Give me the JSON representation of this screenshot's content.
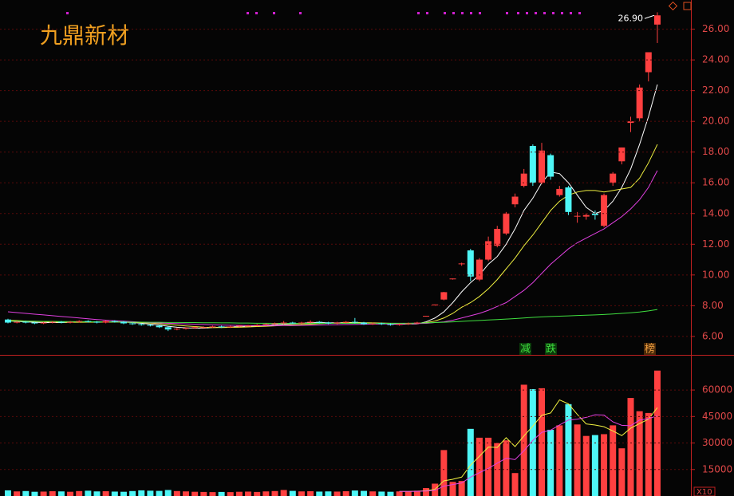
{
  "chart_data": [
    {
      "type": "candlestick",
      "title": "九鼎新材",
      "open": [
        7.1,
        6.9,
        6.95,
        6.9,
        6.85,
        6.9,
        6.95,
        6.9,
        6.95,
        7.0,
        6.95,
        6.9,
        7.0,
        6.95,
        6.85,
        6.8,
        6.75,
        6.7,
        6.6,
        6.45,
        6.5,
        6.55,
        6.6,
        6.6,
        6.65,
        6.6,
        6.65,
        6.7,
        6.7,
        6.75,
        6.8,
        6.85,
        6.9,
        6.85,
        6.9,
        6.95,
        6.9,
        6.85,
        6.9,
        6.95,
        6.9,
        6.8,
        6.85,
        6.8,
        6.75,
        6.8,
        6.85,
        7.3,
        8.07,
        8.4,
        9.75,
        10.7,
        11.6,
        9.7,
        11.0,
        11.9,
        12.7,
        14.6,
        15.8,
        18.4,
        16.0,
        17.8,
        15.2,
        15.7,
        13.8,
        13.8,
        14.0,
        13.2,
        16.0,
        17.4,
        19.9,
        20.2,
        23.2,
        26.3
      ],
      "high": [
        7.15,
        7.0,
        7.0,
        6.95,
        6.95,
        7.0,
        7.0,
        7.0,
        7.05,
        7.05,
        7.0,
        7.05,
        7.05,
        7.0,
        6.9,
        6.85,
        6.8,
        6.75,
        6.65,
        6.55,
        6.6,
        6.65,
        6.65,
        6.7,
        6.7,
        6.7,
        6.75,
        6.75,
        6.8,
        6.85,
        6.9,
        7.0,
        6.95,
        6.95,
        7.05,
        7.0,
        6.95,
        6.95,
        7.0,
        7.2,
        6.95,
        6.9,
        6.9,
        6.85,
        6.85,
        6.9,
        6.95,
        7.34,
        8.08,
        8.9,
        9.77,
        10.8,
        11.7,
        11.1,
        12.5,
        13.2,
        14.1,
        15.3,
        16.9,
        18.5,
        18.6,
        17.9,
        15.8,
        15.8,
        14.1,
        14.0,
        14.2,
        15.3,
        16.7,
        18.3,
        20.3,
        22.4,
        24.5,
        27.1
      ],
      "low": [
        6.85,
        6.85,
        6.85,
        6.8,
        6.8,
        6.85,
        6.85,
        6.85,
        6.9,
        6.9,
        6.85,
        6.85,
        6.9,
        6.8,
        6.75,
        6.7,
        6.65,
        6.55,
        6.35,
        6.4,
        6.45,
        6.5,
        6.55,
        6.55,
        6.55,
        6.55,
        6.6,
        6.65,
        6.65,
        6.7,
        6.75,
        6.8,
        6.8,
        6.8,
        6.85,
        6.85,
        6.8,
        6.8,
        6.85,
        6.85,
        6.75,
        6.75,
        6.75,
        6.7,
        6.7,
        6.75,
        6.8,
        7.3,
        8.07,
        8.35,
        9.7,
        10.6,
        9.6,
        9.6,
        10.9,
        11.8,
        12.6,
        14.4,
        15.7,
        15.8,
        15.9,
        16.2,
        15.1,
        13.9,
        13.4,
        13.6,
        13.6,
        13.1,
        15.8,
        17.2,
        19.3,
        20.0,
        22.6,
        25.1
      ],
      "close": [
        6.9,
        6.95,
        6.9,
        6.85,
        6.9,
        6.95,
        6.9,
        6.95,
        7.0,
        6.95,
        6.9,
        7.0,
        6.95,
        6.85,
        6.8,
        6.75,
        6.7,
        6.6,
        6.45,
        6.5,
        6.55,
        6.6,
        6.6,
        6.65,
        6.6,
        6.65,
        6.7,
        6.7,
        6.75,
        6.8,
        6.85,
        6.9,
        6.85,
        6.9,
        6.95,
        6.9,
        6.85,
        6.9,
        6.95,
        6.9,
        6.8,
        6.85,
        6.8,
        6.75,
        6.8,
        6.85,
        6.9,
        7.34,
        8.08,
        8.88,
        9.77,
        10.75,
        9.9,
        11.0,
        12.2,
        13.0,
        14.0,
        15.1,
        16.6,
        16.0,
        18.1,
        16.4,
        15.6,
        14.1,
        13.85,
        13.9,
        13.9,
        15.2,
        16.6,
        18.3,
        20.0,
        22.2,
        24.5,
        26.9
      ],
      "up_color": "#ff4040",
      "down_color": "#4ef6f6",
      "lines": [
        {
          "color": "#ffffff",
          "values": [
            7.0,
            6.98,
            6.95,
            6.92,
            6.9,
            6.9,
            6.9,
            6.92,
            6.94,
            6.95,
            6.94,
            6.94,
            6.95,
            6.93,
            6.9,
            6.86,
            6.8,
            6.74,
            6.66,
            6.6,
            6.56,
            6.54,
            6.54,
            6.58,
            6.6,
            6.62,
            6.64,
            6.66,
            6.68,
            6.72,
            6.76,
            6.8,
            6.83,
            6.86,
            6.89,
            6.9,
            6.89,
            6.88,
            6.9,
            6.9,
            6.88,
            6.86,
            6.84,
            6.8,
            6.8,
            6.81,
            6.82,
            6.95,
            7.2,
            7.6,
            8.2,
            8.9,
            9.5,
            10.0,
            10.7,
            11.2,
            12.0,
            13.0,
            14.2,
            15.0,
            16.0,
            16.7,
            16.6,
            16.0,
            15.2,
            14.4,
            14.0,
            14.2,
            14.8,
            15.7,
            16.9,
            18.5,
            20.3,
            22.4
          ]
        },
        {
          "color": "#f0f040",
          "values": [
            7.05,
            7.03,
            7.0,
            6.98,
            6.96,
            6.94,
            6.92,
            6.92,
            6.92,
            6.93,
            6.93,
            6.93,
            6.94,
            6.94,
            6.92,
            6.9,
            6.87,
            6.83,
            6.78,
            6.73,
            6.68,
            6.64,
            6.6,
            6.58,
            6.58,
            6.59,
            6.6,
            6.62,
            6.64,
            6.66,
            6.69,
            6.72,
            6.75,
            6.78,
            6.8,
            6.83,
            6.85,
            6.86,
            6.88,
            6.89,
            6.89,
            6.88,
            6.87,
            6.86,
            6.85,
            6.85,
            6.85,
            6.9,
            7.0,
            7.2,
            7.5,
            7.9,
            8.2,
            8.6,
            9.1,
            9.7,
            10.4,
            11.1,
            11.9,
            12.6,
            13.4,
            14.2,
            14.8,
            15.2,
            15.4,
            15.5,
            15.5,
            15.4,
            15.5,
            15.6,
            15.7,
            16.3,
            17.3,
            18.5
          ]
        },
        {
          "color": "#e040e0",
          "values": [
            7.6,
            7.55,
            7.5,
            7.45,
            7.4,
            7.35,
            7.3,
            7.25,
            7.2,
            7.15,
            7.1,
            7.06,
            7.02,
            6.99,
            6.96,
            6.93,
            6.9,
            6.88,
            6.86,
            6.84,
            6.82,
            6.8,
            6.78,
            6.76,
            6.74,
            6.73,
            6.72,
            6.71,
            6.7,
            6.7,
            6.7,
            6.7,
            6.71,
            6.72,
            6.73,
            6.74,
            6.75,
            6.76,
            6.77,
            6.78,
            6.79,
            6.8,
            6.81,
            6.82,
            6.82,
            6.83,
            6.84,
            6.85,
            6.9,
            6.95,
            7.05,
            7.2,
            7.35,
            7.5,
            7.7,
            7.95,
            8.2,
            8.6,
            9.0,
            9.5,
            10.1,
            10.7,
            11.2,
            11.7,
            12.1,
            12.4,
            12.7,
            13.0,
            13.4,
            13.8,
            14.3,
            14.9,
            15.7,
            16.8
          ]
        },
        {
          "color": "#40e040",
          "values": [
            7.0,
            7.0,
            6.99,
            6.99,
            6.98,
            6.98,
            6.97,
            6.97,
            6.96,
            6.96,
            6.95,
            6.95,
            6.94,
            6.94,
            6.93,
            6.93,
            6.92,
            6.92,
            6.91,
            6.91,
            6.9,
            6.9,
            6.89,
            6.89,
            6.88,
            6.88,
            6.87,
            6.87,
            6.86,
            6.86,
            6.85,
            6.85,
            6.85,
            6.85,
            6.85,
            6.85,
            6.85,
            6.85,
            6.85,
            6.85,
            6.85,
            6.85,
            6.85,
            6.85,
            6.86,
            6.86,
            6.87,
            6.88,
            6.9,
            6.92,
            6.95,
            6.98,
            7.01,
            7.04,
            7.07,
            7.1,
            7.13,
            7.16,
            7.2,
            7.24,
            7.27,
            7.3,
            7.32,
            7.34,
            7.36,
            7.38,
            7.4,
            7.43,
            7.46,
            7.5,
            7.54,
            7.59,
            7.66,
            7.75
          ]
        }
      ],
      "last_price": {
        "value": 26.9,
        "label": "26.90"
      },
      "badges": [
        "减",
        "跌",
        "榜"
      ],
      "ylim": [
        4.8,
        27.9
      ],
      "yticks": [
        {
          "value": 6,
          "label": "6.00"
        },
        {
          "value": 8,
          "label": "8.00"
        },
        {
          "value": 10,
          "label": "10.00"
        },
        {
          "value": 12,
          "label": "12.00"
        },
        {
          "value": 14,
          "label": "14.00"
        },
        {
          "value": 16,
          "label": "16.00"
        },
        {
          "value": 18,
          "label": "18.00"
        },
        {
          "value": 20,
          "label": "20.00"
        },
        {
          "value": 22,
          "label": "22.00"
        },
        {
          "value": 24,
          "label": "24.00"
        },
        {
          "value": 26,
          "label": "26.00"
        }
      ],
      "grid": true
    },
    {
      "type": "bar",
      "values": [
        3200,
        2600,
        2800,
        2400,
        2500,
        2700,
        2600,
        2400,
        2800,
        3000,
        2600,
        2700,
        2500,
        2400,
        2800,
        3200,
        3000,
        2900,
        3400,
        2800,
        2600,
        2400,
        2300,
        2200,
        2300,
        2200,
        2400,
        2500,
        2300,
        2600,
        2800,
        3400,
        2900,
        2600,
        2700,
        2500,
        2600,
        2500,
        2700,
        3100,
        2900,
        2600,
        2500,
        2400,
        2600,
        2700,
        3000,
        4500,
        7000,
        26000,
        8000,
        8500,
        38000,
        33000,
        33000,
        30000,
        31500,
        13000,
        63000,
        60500,
        61000,
        37500,
        40000,
        52000,
        40500,
        34000,
        34500,
        35000,
        40000,
        27000,
        55500,
        48000,
        47000,
        71000
      ],
      "lines": [
        {
          "color": "#f0f040",
          "values": [
            null,
            null,
            null,
            null,
            null,
            null,
            null,
            null,
            null,
            null,
            null,
            null,
            null,
            null,
            null,
            null,
            null,
            null,
            null,
            null,
            null,
            null,
            null,
            null,
            null,
            null,
            null,
            null,
            null,
            null,
            null,
            null,
            null,
            null,
            null,
            null,
            null,
            null,
            null,
            null,
            null,
            null,
            null,
            null,
            2600,
            2600,
            2700,
            3000,
            3800,
            8600,
            9500,
            10700,
            17500,
            22500,
            27700,
            27500,
            33000,
            28000,
            34000,
            39600,
            45700,
            47000,
            54400,
            52200,
            46200,
            40800,
            40200,
            39200,
            36800,
            34200,
            38400,
            41000,
            43500,
            50000
          ]
        },
        {
          "color": "#e040e0",
          "values": [
            null,
            null,
            null,
            null,
            null,
            null,
            null,
            null,
            null,
            null,
            null,
            null,
            null,
            null,
            null,
            null,
            null,
            null,
            null,
            null,
            null,
            null,
            null,
            null,
            null,
            null,
            null,
            null,
            null,
            null,
            null,
            null,
            null,
            null,
            null,
            null,
            null,
            null,
            null,
            null,
            null,
            null,
            null,
            null,
            2600,
            2600,
            2650,
            2800,
            3200,
            5600,
            6500,
            7400,
            10700,
            13200,
            15600,
            18600,
            21400,
            20600,
            25600,
            31500,
            36000,
            37300,
            40200,
            43000,
            43500,
            44500,
            46000,
            45800,
            42000,
            40000,
            39800,
            43000,
            43800,
            45400
          ]
        }
      ],
      "unit_label": "X10",
      "ylim": [
        0,
        79000
      ],
      "yticks": [
        15000,
        30000,
        45000,
        60000
      ],
      "grid": true
    }
  ]
}
